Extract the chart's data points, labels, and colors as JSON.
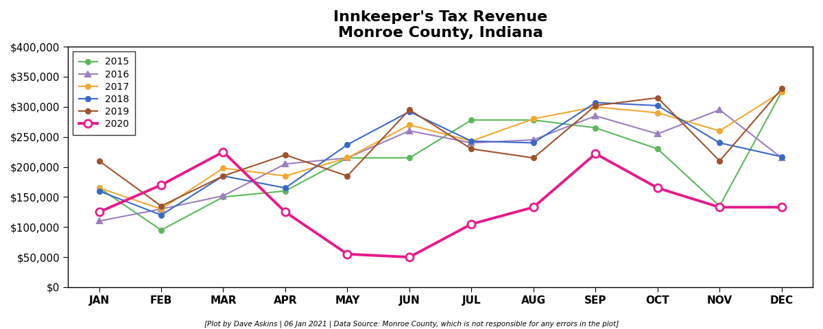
{
  "title_line1": "Innkeeper's Tax Revenue",
  "title_line2": "Monroe County, Indiana",
  "footnote": "[Plot by Dave Askins | 06 Jan 2021 | Data Source: Monroe County, which is not responsible for any errors in the plot]",
  "months": [
    "JAN",
    "FEB",
    "MAR",
    "APR",
    "MAY",
    "JUN",
    "JUL",
    "AUG",
    "SEP",
    "OCT",
    "NOV",
    "DEC"
  ],
  "series": {
    "2015": {
      "color": "#5CB85C",
      "marker": "o",
      "linewidth": 1.5,
      "markersize": 5,
      "values": [
        165000,
        95000,
        150000,
        160000,
        215000,
        215000,
        278000,
        278000,
        265000,
        230000,
        135000,
        325000
      ]
    },
    "2016": {
      "color": "#9B7FBE",
      "marker": "^",
      "linewidth": 1.5,
      "markersize": 6,
      "values": [
        110000,
        130000,
        152000,
        205000,
        215000,
        260000,
        240000,
        245000,
        285000,
        255000,
        295000,
        215000
      ]
    },
    "2017": {
      "color": "#F0A830",
      "marker": "o",
      "linewidth": 1.5,
      "markersize": 5,
      "values": [
        165000,
        130000,
        198000,
        185000,
        215000,
        270000,
        243000,
        280000,
        300000,
        290000,
        260000,
        325000
      ]
    },
    "2018": {
      "color": "#3A68C8",
      "marker": "o",
      "linewidth": 1.5,
      "markersize": 5,
      "values": [
        160000,
        120000,
        185000,
        165000,
        237000,
        292000,
        243000,
        240000,
        307000,
        302000,
        240000,
        217000
      ]
    },
    "2019": {
      "color": "#A0522D",
      "marker": "o",
      "linewidth": 1.5,
      "markersize": 5,
      "values": [
        210000,
        135000,
        185000,
        220000,
        185000,
        295000,
        230000,
        215000,
        302000,
        315000,
        210000,
        330000
      ]
    },
    "2020": {
      "color": "#E8198A",
      "marker": "o",
      "linewidth": 2.8,
      "markersize": 8,
      "values": [
        125000,
        170000,
        225000,
        125000,
        55000,
        50000,
        105000,
        133000,
        222000,
        165000,
        133000,
        133000
      ]
    }
  },
  "ylim": [
    0,
    400000
  ],
  "yticks": [
    0,
    50000,
    100000,
    150000,
    200000,
    250000,
    300000,
    350000,
    400000
  ],
  "background_color": "#ffffff",
  "plot_bg_color": "#ffffff",
  "title_fontsize": 16,
  "tick_fontsize": 11
}
